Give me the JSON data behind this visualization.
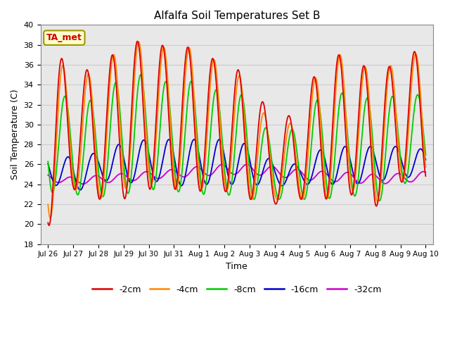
{
  "title": "Alfalfa Soil Temperatures Set B",
  "xlabel": "Time",
  "ylabel": "Soil Temperature (C)",
  "ylim": [
    18,
    40
  ],
  "xlim": [
    -0.3,
    15.3
  ],
  "bg_color": "#e8e8e8",
  "annotation_text": "TA_met",
  "annotation_color": "#cc0000",
  "annotation_bg": "#ffffcc",
  "annotation_border": "#999900",
  "series_colors": {
    "-2cm": "#dd0000",
    "-4cm": "#ff8800",
    "-8cm": "#00cc00",
    "-16cm": "#0000cc",
    "-32cm": "#cc00cc"
  },
  "xtick_labels": [
    "Jul 26",
    "Jul 27",
    "Jul 28",
    "Jul 29",
    "Jul 30",
    "Jul 31",
    "Aug 1",
    "Aug 2",
    "Aug 3",
    "Aug 4",
    "Aug 5",
    "Aug 6",
    "Aug 7",
    "Aug 8",
    "Aug 9",
    "Aug 10"
  ],
  "xtick_positions": [
    0,
    1,
    2,
    3,
    4,
    5,
    6,
    7,
    8,
    9,
    10,
    11,
    12,
    13,
    14,
    15
  ],
  "ytick_labels": [
    "18",
    "20",
    "22",
    "24",
    "26",
    "28",
    "30",
    "32",
    "34",
    "36",
    "38",
    "40"
  ],
  "ytick_positions": [
    18,
    20,
    22,
    24,
    26,
    28,
    30,
    32,
    34,
    36,
    38,
    40
  ],
  "figsize": [
    6.4,
    4.8
  ],
  "dpi": 100
}
